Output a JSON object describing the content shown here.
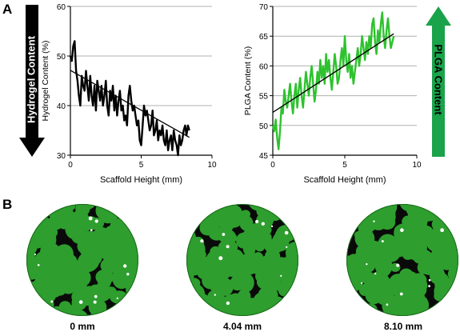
{
  "panel_a": {
    "letter": "A"
  },
  "panel_b": {
    "letter": "B"
  },
  "arrows": {
    "left": {
      "label": "Hydrogel Content",
      "direction": "down",
      "color": "#000000"
    },
    "right": {
      "label": "PLGA Content",
      "direction": "up",
      "color": "#1aa34a"
    }
  },
  "colors": {
    "hydrogel_line": "#000000",
    "plga_line": "#2ec22e",
    "disc_green": "#2e9e2e",
    "disc_black": "#0a0a0a"
  },
  "chart_data": [
    {
      "type": "line",
      "xlabel": "Scaffold Height (mm)",
      "ylabel": "Hydrogel Content (%)",
      "xlim": [
        0,
        10
      ],
      "ylim": [
        30,
        60
      ],
      "xticks": [
        "0",
        "5",
        "10"
      ],
      "yticks": [
        "30",
        "40",
        "50",
        "60"
      ],
      "grid": "horizontal",
      "series": [
        {
          "x": [
            0.0,
            0.1,
            0.2,
            0.3,
            0.4,
            0.5,
            0.6,
            0.7,
            0.8,
            0.9,
            1.0,
            1.1,
            1.2,
            1.3,
            1.4,
            1.5,
            1.6,
            1.7,
            1.8,
            1.9,
            2.0,
            2.1,
            2.2,
            2.3,
            2.4,
            2.5,
            2.6,
            2.7,
            2.8,
            2.9,
            3.0,
            3.1,
            3.2,
            3.3,
            3.4,
            3.5,
            3.6,
            3.7,
            3.8,
            3.9,
            4.0,
            4.1,
            4.2,
            4.3,
            4.4,
            4.5,
            4.6,
            4.7,
            4.8,
            4.9,
            5.0,
            5.1,
            5.2,
            5.3,
            5.4,
            5.5,
            5.6,
            5.7,
            5.8,
            5.9,
            6.0,
            6.1,
            6.2,
            6.3,
            6.4,
            6.5,
            6.6,
            6.7,
            6.8,
            6.9,
            7.0,
            7.1,
            7.2,
            7.3,
            7.4,
            7.5,
            7.6,
            7.7,
            7.8,
            7.9,
            8.0,
            8.1,
            8.2,
            8.3,
            8.4
          ],
          "y": [
            50,
            49,
            52,
            53,
            47,
            45,
            42,
            40,
            46,
            44,
            43,
            47,
            44,
            41,
            46,
            42,
            40,
            44,
            39,
            45,
            43,
            41,
            44,
            40,
            42,
            45,
            40,
            38,
            43,
            41,
            44,
            39,
            42,
            38,
            41,
            43,
            39,
            40,
            37,
            38,
            36,
            42,
            44,
            41,
            39,
            40,
            38,
            36,
            37,
            33,
            32,
            36,
            40,
            38,
            39,
            37,
            35,
            36,
            39,
            34,
            35,
            37,
            33,
            35,
            34,
            36,
            33,
            32,
            35,
            31,
            33,
            34,
            31,
            35,
            33,
            32,
            30,
            34,
            32,
            33,
            35,
            36,
            34,
            36,
            35
          ]
        },
        {
          "name": "fit",
          "x": [
            0,
            8.4
          ],
          "y": [
            47.1,
            33.6
          ]
        }
      ]
    },
    {
      "type": "line",
      "xlabel": "Scaffold Height (mm)",
      "ylabel": "PLGA Content (%)",
      "xlim": [
        0,
        10
      ],
      "ylim": [
        45,
        70
      ],
      "xticks": [
        "0",
        "5",
        "10"
      ],
      "yticks": [
        "45",
        "50",
        "55",
        "60",
        "65",
        "70"
      ],
      "grid": "horizontal",
      "series": [
        {
          "x": [
            0.0,
            0.1,
            0.2,
            0.3,
            0.4,
            0.5,
            0.6,
            0.7,
            0.8,
            0.9,
            1.0,
            1.1,
            1.2,
            1.3,
            1.4,
            1.5,
            1.6,
            1.7,
            1.8,
            1.9,
            2.0,
            2.1,
            2.2,
            2.3,
            2.4,
            2.5,
            2.6,
            2.7,
            2.8,
            2.9,
            3.0,
            3.1,
            3.2,
            3.3,
            3.4,
            3.5,
            3.6,
            3.7,
            3.8,
            3.9,
            4.0,
            4.1,
            4.2,
            4.3,
            4.4,
            4.5,
            4.6,
            4.7,
            4.8,
            4.9,
            5.0,
            5.1,
            5.2,
            5.3,
            5.4,
            5.5,
            5.6,
            5.7,
            5.8,
            5.9,
            6.0,
            6.1,
            6.2,
            6.3,
            6.4,
            6.5,
            6.6,
            6.7,
            6.8,
            6.9,
            7.0,
            7.1,
            7.2,
            7.3,
            7.4,
            7.5,
            7.6,
            7.7,
            7.8,
            7.9,
            8.0,
            8.1,
            8.2,
            8.3,
            8.4
          ],
          "y": [
            50,
            49,
            51,
            48,
            46,
            49,
            53,
            52,
            56,
            54,
            53,
            55,
            57,
            54,
            52,
            55,
            57,
            53,
            56,
            58,
            55,
            53,
            56,
            59,
            57,
            55,
            58,
            60,
            57,
            54,
            56,
            59,
            57,
            61,
            58,
            60,
            57,
            62,
            59,
            61,
            58,
            56,
            59,
            62,
            60,
            57,
            58,
            61,
            63,
            60,
            65,
            61,
            59,
            62,
            58,
            60,
            57,
            59,
            61,
            63,
            60,
            62,
            65,
            63,
            61,
            64,
            62,
            65,
            63,
            67,
            68,
            64,
            62,
            66,
            64,
            67,
            69,
            65,
            63,
            66,
            68,
            65,
            63,
            64,
            65
          ]
        },
        {
          "name": "fit",
          "x": [
            0,
            8.4
          ],
          "y": [
            52.2,
            65.4
          ]
        }
      ]
    }
  ],
  "discs": [
    {
      "label": "0 mm",
      "seed": 11
    },
    {
      "label": "4.04 mm",
      "seed": 37
    },
    {
      "label": "8.10 mm",
      "seed": 73
    }
  ]
}
